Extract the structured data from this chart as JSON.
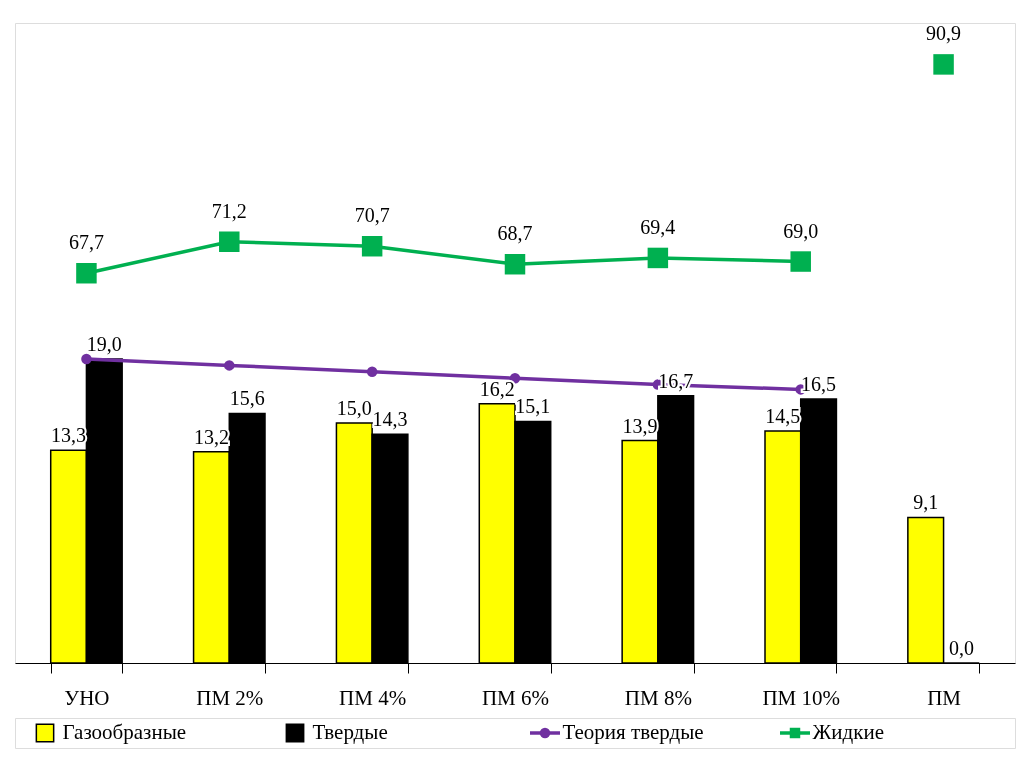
{
  "chart_data": {
    "type": "bar",
    "categories": [
      "УНО",
      "ПМ 2%",
      "ПМ 4%",
      "ПМ 6%",
      "ПМ 8%",
      "ПМ 10%",
      "ПМ"
    ],
    "ylim": [
      0,
      40
    ],
    "y2lim": [
      24.4,
      95.5
    ],
    "tick_labels": "x",
    "legend": "bottom",
    "grid": false,
    "series": [
      {
        "name": "Газообразные",
        "color": "#ffff00",
        "values": [
          13.3,
          13.2,
          15.0,
          16.2,
          13.9,
          14.5,
          9.1
        ],
        "value_labels": [
          "13,3",
          "13,2",
          "15,0",
          "16,2",
          "13,9",
          "14,5",
          "9,1"
        ]
      },
      {
        "name": "Твердые",
        "color": "#000000",
        "values": [
          19.0,
          15.6,
          14.3,
          15.1,
          16.7,
          16.5,
          0.0
        ],
        "value_labels": [
          "19,0",
          "15,6",
          "14,3",
          "15,1",
          "16,7",
          "16,5",
          "0,0"
        ]
      },
      {
        "name": "Теория твердые",
        "type": "line",
        "color": "#7030a0",
        "marker": "circle",
        "line_style": "solid",
        "values": [
          19.0,
          18.6,
          18.2,
          17.8,
          17.4,
          17.1,
          null
        ]
      },
      {
        "name": "Жидкие",
        "type": "line",
        "color": "#00b050",
        "marker": "square",
        "line_style": "solid",
        "axis": "y2",
        "values": [
          67.7,
          71.2,
          70.7,
          68.7,
          69.4,
          69.0,
          null
        ],
        "value_labels": [
          "67,7",
          "71,2",
          "70,7",
          "68,7",
          "69,4",
          "69,0",
          null
        ]
      },
      {
        "type": "scatter",
        "color": "#00b050",
        "marker": "square",
        "axis": "y2",
        "values": [
          null,
          null,
          null,
          null,
          null,
          null,
          90.9
        ],
        "value_labels": [
          null,
          null,
          null,
          null,
          null,
          null,
          "90,9"
        ]
      }
    ]
  }
}
